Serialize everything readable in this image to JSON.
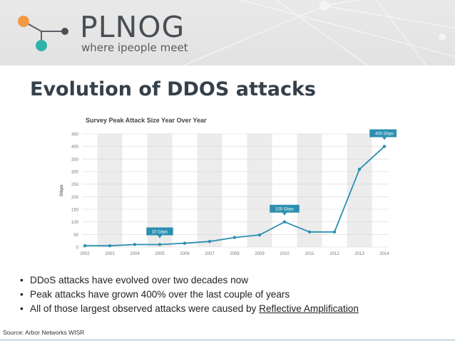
{
  "brand": {
    "name": "PLNOG",
    "tagline": "where ipeople meet",
    "logo_colors": {
      "orange": "#f39a44",
      "teal": "#2eb3a8",
      "dark": "#4a4f55"
    }
  },
  "slide": {
    "title": "Evolution of DDOS attacks",
    "bullets": [
      "DDoS attacks have evolved over two decades now",
      "Peak attacks have grown 400% over the last couple of years"
    ],
    "bullet3_prefix": "All of those largest observed attacks were caused by ",
    "bullet3_link": "Reflective Amplification",
    "source": "Source: Arbor Networks WISR"
  },
  "chart_data": {
    "type": "line",
    "title": "Survey Peak Attack Size Year Over Year",
    "ylabel": "Gbps",
    "xlabel": "",
    "ylim": [
      0,
      450
    ],
    "yticks": [
      0,
      50,
      100,
      150,
      200,
      250,
      300,
      350,
      400,
      450
    ],
    "grid": "alternating vertical bands",
    "x": [
      "2002",
      "2003",
      "2004",
      "2005",
      "2006",
      "2007",
      "2008",
      "2009",
      "2010",
      "2011",
      "2012",
      "2013",
      "2014"
    ],
    "series": [
      {
        "values": [
          5,
          5,
          10,
          10,
          15,
          22,
          38,
          48,
          100,
          60,
          60,
          309,
          400
        ]
      }
    ],
    "callouts": [
      {
        "text": "10 Gbps",
        "year": "2005"
      },
      {
        "text": "100 Gbps",
        "year": "2010"
      },
      {
        "text": "400 Gbps",
        "year": "2014"
      }
    ],
    "colors": {
      "line": "#2c8fb0",
      "callout": "#2c8fb0",
      "band": "#ececec"
    }
  }
}
